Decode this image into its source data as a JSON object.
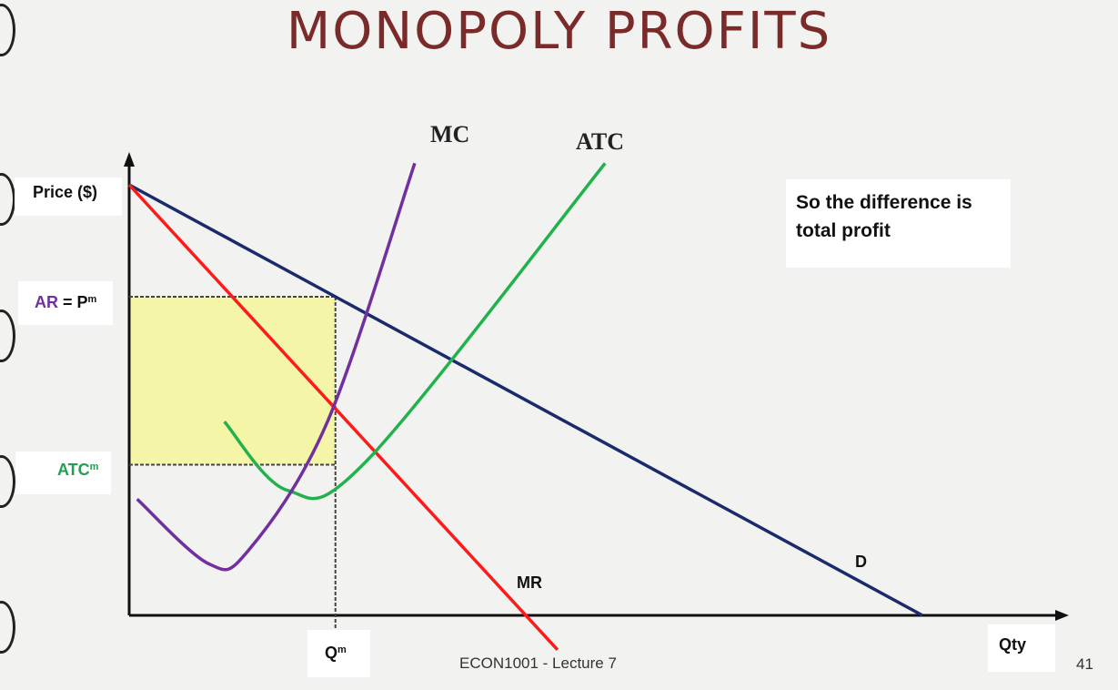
{
  "slide": {
    "title": "MONOPOLY PROFITS",
    "footer": "ECON1001 - Lecture 7",
    "page_number": "41"
  },
  "labels": {
    "price_axis": "Price ($)",
    "ar_part": "AR",
    "eq_part": " = P",
    "m_sup": "m",
    "atc_base": "ATC",
    "q_base": "Q",
    "qty_axis": "Qty",
    "mc": "MC",
    "atc": "ATC",
    "mr": "MR",
    "d": "D"
  },
  "note": "So the difference is total profit",
  "colors": {
    "title": "#7b2a2a",
    "demand": "#1a2b6b",
    "mr": "#ff1a1a",
    "mc": "#7030a0",
    "atc": "#22b14c",
    "profit_fill": "#f5f5a8",
    "ar_label": "#7030a0",
    "atc_label": "#22a050"
  },
  "chart_data": {
    "type": "line",
    "title": "",
    "xlabel": "Qty",
    "ylabel": "Price ($)",
    "series": [
      {
        "name": "D",
        "points": [
          [
            0,
            10
          ],
          [
            10,
            0
          ]
        ]
      },
      {
        "name": "MR",
        "points": [
          [
            0,
            10
          ],
          [
            5,
            0
          ]
        ]
      },
      {
        "name": "MC",
        "points": [
          [
            0.1,
            2.7
          ],
          [
            1,
            1.2
          ],
          [
            1.5,
            1.5
          ],
          [
            2.5,
            4.5
          ],
          [
            3.6,
            10.5
          ]
        ]
      },
      {
        "name": "ATC",
        "points": [
          [
            1.2,
            4.5
          ],
          [
            2,
            2.9
          ],
          [
            3,
            3.6
          ],
          [
            6,
            10.5
          ]
        ]
      }
    ],
    "profit_region": {
      "q_m": 2.6,
      "p_m": 7.4,
      "atc_m": 3.5
    },
    "axis_labels": {
      "price": "AR = Pm",
      "cost": "ATCm",
      "quantity": "Qm"
    },
    "grid": false,
    "legend": "none"
  }
}
